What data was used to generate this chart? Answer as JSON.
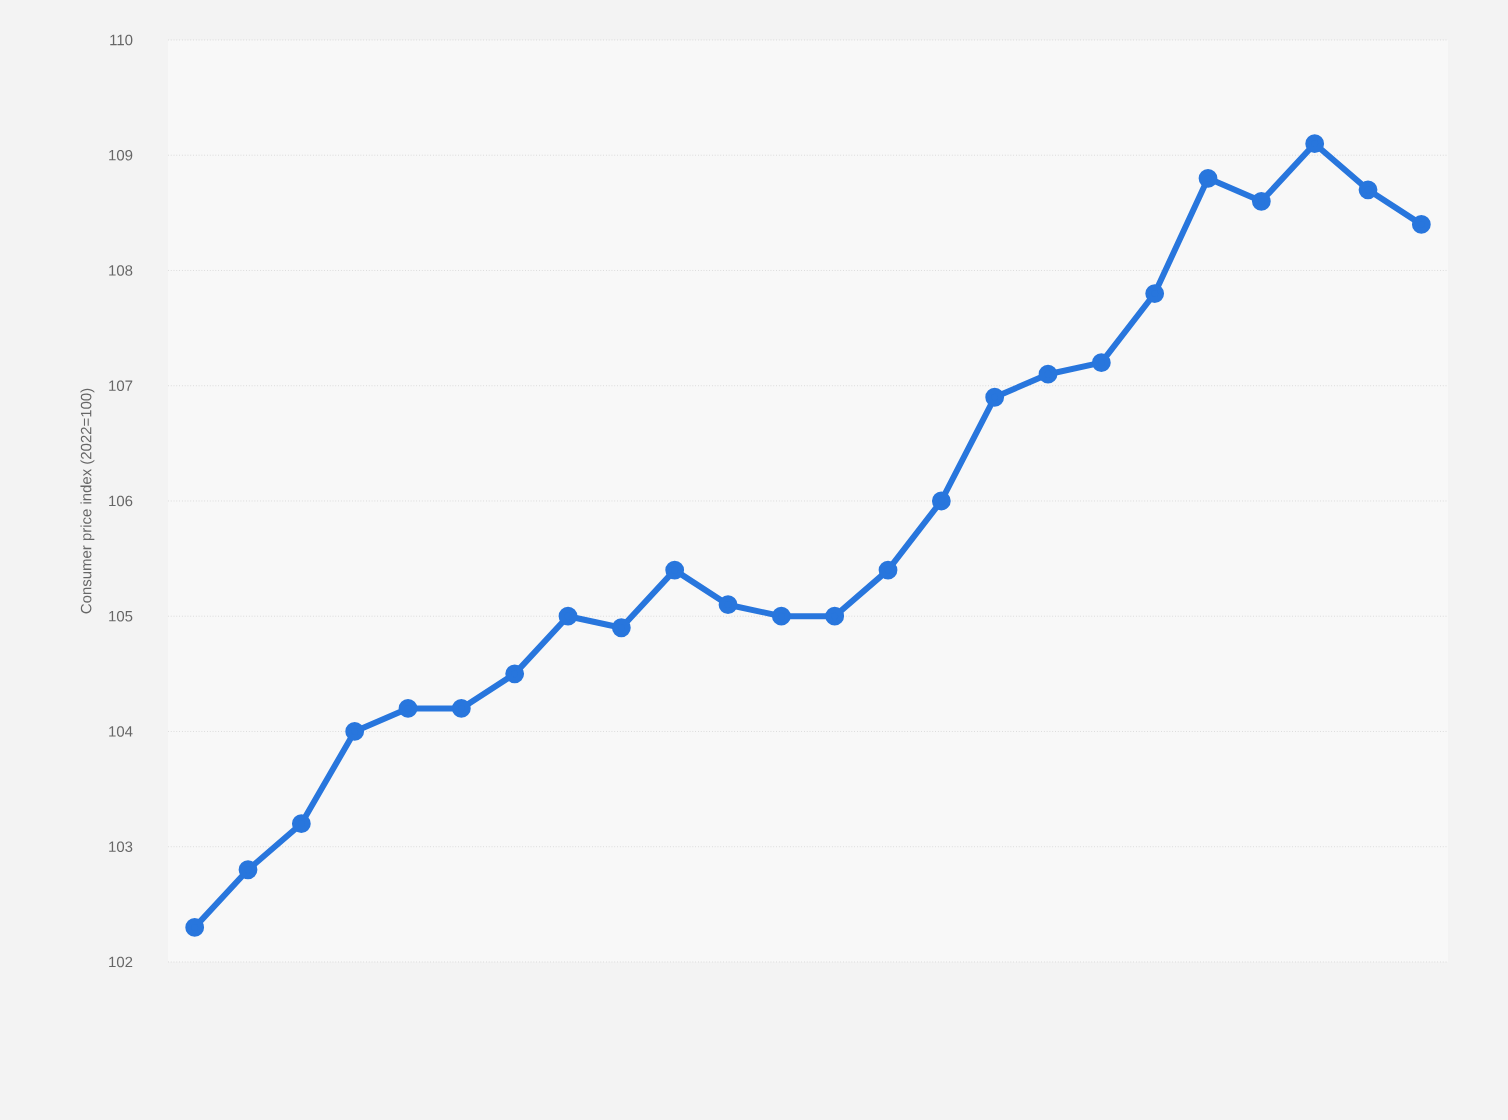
{
  "chart_data": {
    "type": "line",
    "ylabel": "Consumer price index (2022=100)",
    "categories": [
      null,
      null,
      null,
      null,
      null,
      null,
      null,
      null,
      null,
      null,
      null,
      null,
      null,
      null,
      null,
      null,
      null,
      null,
      null,
      null,
      null,
      null,
      null,
      null
    ],
    "values": [
      102.3,
      102.8,
      103.2,
      104.0,
      104.2,
      104.2,
      104.5,
      105.0,
      104.9,
      105.4,
      105.1,
      105.0,
      105.0,
      105.4,
      106.0,
      106.9,
      107.1,
      107.2,
      107.8,
      108.8,
      108.6,
      109.1,
      108.7,
      108.4
    ],
    "color": "#2876dd",
    "ylim": [
      102,
      110
    ],
    "yticks": [
      102,
      103,
      104,
      105,
      106,
      107,
      108,
      109,
      110
    ],
    "grid": "y",
    "marker": "circle",
    "line_style": "solid"
  }
}
